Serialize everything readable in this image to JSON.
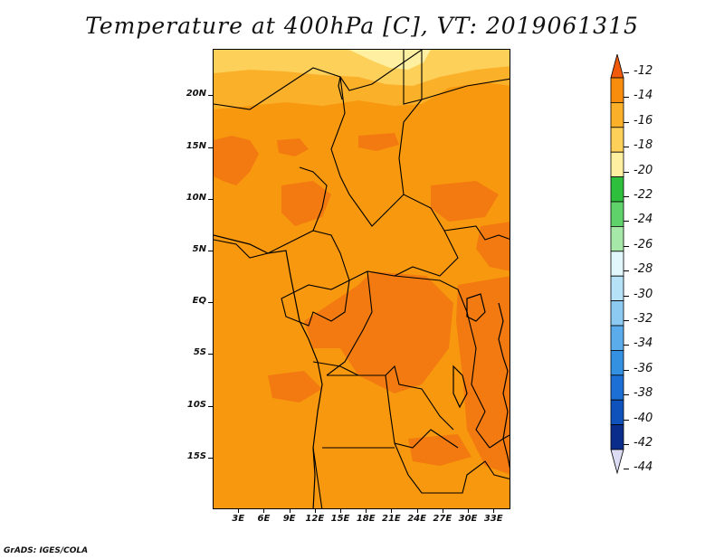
{
  "title": "Temperature at 400hPa [C], VT: 2019061315",
  "credit": "GrADS: IGES/COLA",
  "map": {
    "lat_range": [
      -20,
      24.5
    ],
    "lon_range": [
      0,
      35
    ],
    "y_ticks": [
      {
        "label": "20N",
        "lat": 20
      },
      {
        "label": "15N",
        "lat": 15
      },
      {
        "label": "10N",
        "lat": 10
      },
      {
        "label": "5N",
        "lat": 5
      },
      {
        "label": "EQ",
        "lat": 0
      },
      {
        "label": "5S",
        "lat": -5
      },
      {
        "label": "10S",
        "lat": -10
      },
      {
        "label": "15S",
        "lat": -15
      }
    ],
    "x_ticks": [
      {
        "label": "3E",
        "lon": 3
      },
      {
        "label": "6E",
        "lon": 6
      },
      {
        "label": "9E",
        "lon": 9
      },
      {
        "label": "12E",
        "lon": 12
      },
      {
        "label": "15E",
        "lon": 15
      },
      {
        "label": "18E",
        "lon": 18
      },
      {
        "label": "21E",
        "lon": 21
      },
      {
        "label": "24E",
        "lon": 24
      },
      {
        "label": "27E",
        "lon": 27
      },
      {
        "label": "30E",
        "lon": 30
      },
      {
        "label": "33E",
        "lon": 33
      }
    ]
  },
  "colorbar": {
    "levels": [
      "-12",
      "-14",
      "-16",
      "-18",
      "-20",
      "-22",
      "-24",
      "-26",
      "-28",
      "-30",
      "-32",
      "-34",
      "-36",
      "-38",
      "-40",
      "-42",
      "-44"
    ],
    "colors": [
      "#f05a0a",
      "#f88c0c",
      "#fbb02a",
      "#fdd05a",
      "#fef0a0",
      "#2ebf3c",
      "#5fd36a",
      "#a6e8a8",
      "#e1f7fb",
      "#b6e2f7",
      "#8ccaf2",
      "#5aacea",
      "#3490e0",
      "#1c6fd4",
      "#0f52bb",
      "#0a2c8a",
      "#0a1466"
    ]
  }
}
